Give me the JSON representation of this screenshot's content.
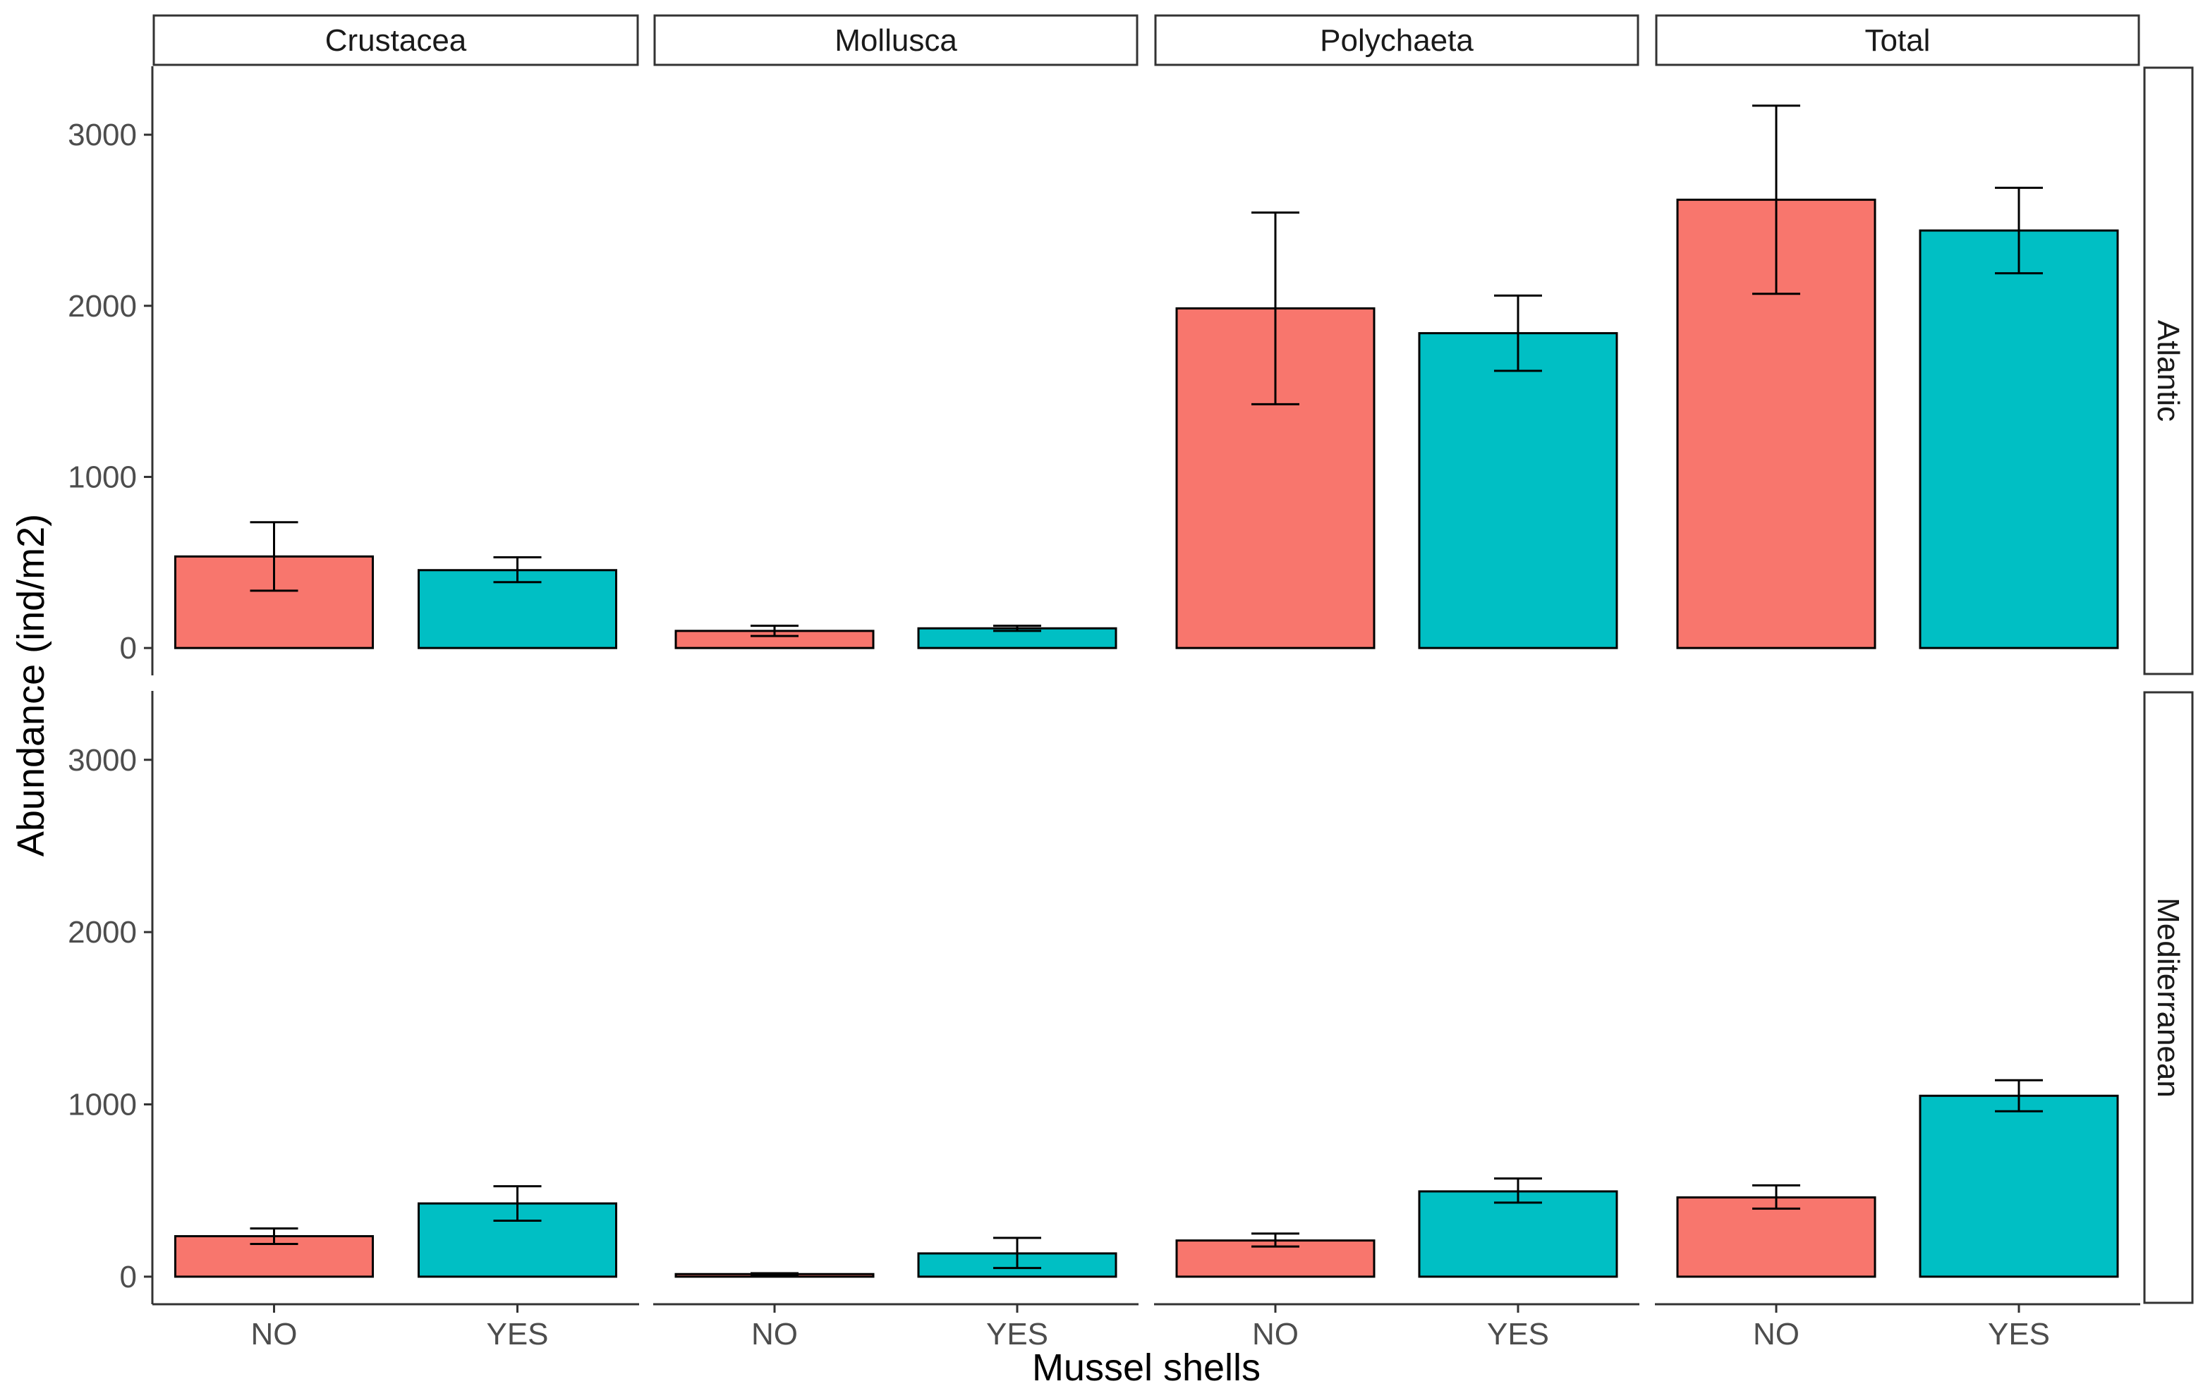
{
  "chart_data": {
    "type": "bar",
    "xlabel": "Mussel shells",
    "ylabel": "Abundance (ind/m2)",
    "ylim": [
      -160,
      3400
    ],
    "y_ticks": [
      0,
      1000,
      2000,
      3000
    ],
    "y_tick_labels": [
      "0",
      "1000",
      "2000",
      "3000"
    ],
    "categories": [
      "NO",
      "YES"
    ],
    "colors": {
      "NO": "#F8766D",
      "YES": "#00BFC4"
    },
    "facet_columns": [
      "Crustacea",
      "Mollusca",
      "Polychaeta",
      "Total"
    ],
    "facet_rows": [
      "Atlantic",
      "Mediterranean"
    ],
    "panels": [
      {
        "row": "Atlantic",
        "col": "Crustacea",
        "bars": [
          {
            "category": "NO",
            "value": 535,
            "err_low": 335,
            "err_high": 735
          },
          {
            "category": "YES",
            "value": 455,
            "err_low": 385,
            "err_high": 530
          }
        ]
      },
      {
        "row": "Atlantic",
        "col": "Mollusca",
        "bars": [
          {
            "category": "NO",
            "value": 100,
            "err_low": 70,
            "err_high": 130
          },
          {
            "category": "YES",
            "value": 115,
            "err_low": 100,
            "err_high": 130
          }
        ]
      },
      {
        "row": "Atlantic",
        "col": "Polychaeta",
        "bars": [
          {
            "category": "NO",
            "value": 1985,
            "err_low": 1425,
            "err_high": 2545
          },
          {
            "category": "YES",
            "value": 1840,
            "err_low": 1620,
            "err_high": 2060
          }
        ]
      },
      {
        "row": "Atlantic",
        "col": "Total",
        "bars": [
          {
            "category": "NO",
            "value": 2620,
            "err_low": 2070,
            "err_high": 3170
          },
          {
            "category": "YES",
            "value": 2440,
            "err_low": 2190,
            "err_high": 2690
          }
        ]
      },
      {
        "row": "Mediterranean",
        "col": "Crustacea",
        "bars": [
          {
            "category": "NO",
            "value": 235,
            "err_low": 190,
            "err_high": 280
          },
          {
            "category": "YES",
            "value": 425,
            "err_low": 325,
            "err_high": 525
          }
        ]
      },
      {
        "row": "Mediterranean",
        "col": "Mollusca",
        "bars": [
          {
            "category": "NO",
            "value": 15,
            "err_low": 10,
            "err_high": 20
          },
          {
            "category": "YES",
            "value": 135,
            "err_low": 50,
            "err_high": 225
          }
        ]
      },
      {
        "row": "Mediterranean",
        "col": "Polychaeta",
        "bars": [
          {
            "category": "NO",
            "value": 210,
            "err_low": 175,
            "err_high": 250
          },
          {
            "category": "YES",
            "value": 495,
            "err_low": 430,
            "err_high": 570
          }
        ]
      },
      {
        "row": "Mediterranean",
        "col": "Total",
        "bars": [
          {
            "category": "NO",
            "value": 460,
            "err_low": 395,
            "err_high": 530
          },
          {
            "category": "YES",
            "value": 1050,
            "err_low": 960,
            "err_high": 1140
          }
        ]
      }
    ]
  }
}
